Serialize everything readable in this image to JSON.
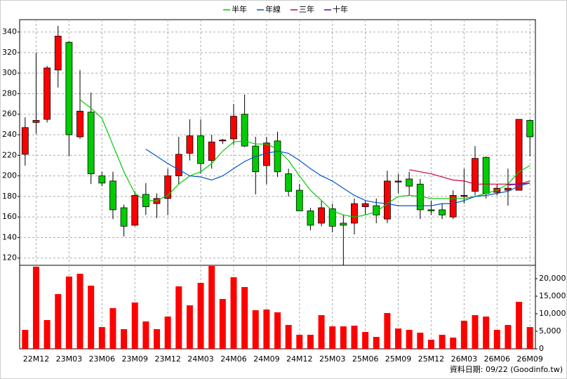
{
  "chart_data": {
    "type": "candlestick",
    "categories": [
      null,
      "22M12",
      null,
      null,
      "23M03",
      null,
      null,
      "23M06",
      null,
      null,
      "23M09",
      null,
      null,
      "23M12",
      null,
      null,
      "24M03",
      null,
      null,
      "24M06",
      null,
      null,
      "24M09",
      null,
      null,
      "24M12",
      null,
      null,
      "25M03",
      null,
      null,
      "25M06",
      null,
      null,
      "25M09",
      null,
      null,
      "25M12",
      null,
      null,
      "26M03",
      null,
      null,
      "26M06",
      null,
      null,
      "26M09"
    ],
    "open": [
      221,
      252,
      255,
      303,
      330,
      238,
      262,
      200,
      195,
      169,
      152,
      182,
      173,
      178,
      200,
      222,
      239,
      215,
      234,
      236,
      260,
      229,
      210,
      234,
      202,
      186,
      166,
      154,
      168,
      154,
      154,
      170,
      171,
      158,
      194,
      197,
      192,
      167,
      167,
      160,
      180,
      185,
      218,
      184,
      186,
      186,
      254
    ],
    "high": [
      257,
      320,
      307,
      346,
      331,
      303,
      281,
      204,
      204,
      172,
      185,
      193,
      183,
      207,
      238,
      255,
      255,
      240,
      236,
      270,
      279,
      238,
      238,
      243,
      207,
      192,
      169,
      176,
      173,
      162,
      178,
      176,
      178,
      205,
      202,
      204,
      197,
      176,
      173,
      186,
      207,
      229,
      219,
      192,
      207,
      255,
      255
    ],
    "low": [
      210,
      241,
      252,
      286,
      219,
      236,
      192,
      190,
      158,
      141,
      151,
      162,
      159,
      162,
      192,
      215,
      202,
      207,
      231,
      230,
      228,
      182,
      192,
      199,
      180,
      166,
      147,
      151,
      145,
      113,
      143,
      162,
      154,
      154,
      183,
      181,
      158,
      162,
      158,
      158,
      173,
      181,
      178,
      181,
      171,
      186,
      219
    ],
    "close": [
      247,
      254,
      305,
      336,
      240,
      263,
      202,
      193,
      167,
      151,
      181,
      170,
      178,
      200,
      221,
      239,
      212,
      233,
      235,
      258,
      229,
      204,
      232,
      204,
      185,
      166,
      152,
      169,
      151,
      152,
      173,
      173,
      162,
      195,
      195,
      190,
      167,
      166,
      162,
      181,
      181,
      217,
      183,
      188,
      188,
      255,
      238
    ],
    "up_color": "#ff0000",
    "down_color": "#00cc00",
    "series": [
      {
        "name": "半年",
        "color": "#00cc00",
        "values": [
          null,
          null,
          null,
          null,
          null,
          274,
          266,
          256,
          230,
          204,
          183,
          176,
          176,
          181,
          192,
          200,
          204,
          212,
          224,
          233,
          234,
          231,
          231,
          226,
          215,
          200,
          186,
          176,
          166,
          162,
          160,
          162,
          165,
          173,
          180,
          181,
          180,
          178,
          178,
          178,
          178,
          180,
          183,
          186,
          192,
          204,
          210
        ]
      },
      {
        "name": "年線",
        "color": "#0055cc",
        "values": [
          null,
          null,
          null,
          null,
          null,
          null,
          null,
          null,
          null,
          null,
          null,
          226,
          219,
          212,
          206,
          200,
          199,
          196,
          200,
          207,
          214,
          219,
          222,
          224,
          222,
          215,
          207,
          200,
          195,
          188,
          181,
          176,
          174,
          173,
          171,
          171,
          171,
          171,
          173,
          173,
          176,
          180,
          181,
          183,
          185,
          190,
          193
        ]
      },
      {
        "name": "三年",
        "color": "#cc0044",
        "values": [
          null,
          null,
          null,
          null,
          null,
          null,
          null,
          null,
          null,
          null,
          null,
          null,
          null,
          null,
          null,
          null,
          null,
          null,
          null,
          null,
          null,
          null,
          null,
          null,
          null,
          null,
          null,
          null,
          null,
          null,
          null,
          null,
          null,
          null,
          null,
          206,
          204,
          202,
          199,
          196,
          195,
          192,
          192,
          192,
          192,
          192,
          195
        ]
      },
      {
        "name": "十年",
        "color": "#660099",
        "values": [
          null,
          null,
          null,
          null,
          null,
          null,
          null,
          null,
          null,
          null,
          null,
          null,
          null,
          null,
          null,
          null,
          null,
          null,
          null,
          null,
          null,
          null,
          null,
          null,
          null,
          null,
          null,
          null,
          null,
          null,
          null,
          null,
          null,
          null,
          null,
          null,
          null,
          null,
          null,
          null,
          null,
          null,
          null,
          null,
          191,
          192,
          193
        ]
      }
    ],
    "ylim": [
      113,
      352
    ],
    "yticks": [
      120,
      140,
      160,
      180,
      200,
      220,
      240,
      260,
      280,
      300,
      320,
      340
    ],
    "volume": {
      "color": "#ff0000",
      "values": [
        5400,
        23400,
        8200,
        15600,
        20600,
        21400,
        18000,
        6200,
        11600,
        5600,
        13200,
        7800,
        5600,
        9200,
        17800,
        12400,
        18800,
        23600,
        14200,
        20400,
        17600,
        11000,
        11200,
        10400,
        6800,
        4000,
        4000,
        9600,
        6400,
        6400,
        6600,
        4800,
        3400,
        10200,
        5800,
        5400,
        4600,
        2600,
        4000,
        3200,
        8000,
        9600,
        9200,
        5400,
        6800,
        13400,
        6200
      ],
      "ylim": [
        0,
        23800
      ],
      "yticks": [
        0,
        {
          "value": 5000,
          "label": "5,000"
        },
        {
          "value": 10000,
          "label": "10,000"
        },
        {
          "value": 15000,
          "label": "15,000"
        },
        {
          "value": 20000,
          "label": "20,000"
        }
      ]
    },
    "grid": true,
    "legend": "top",
    "source": "資料日期: 09/22 (Goodinfo.tw)"
  }
}
